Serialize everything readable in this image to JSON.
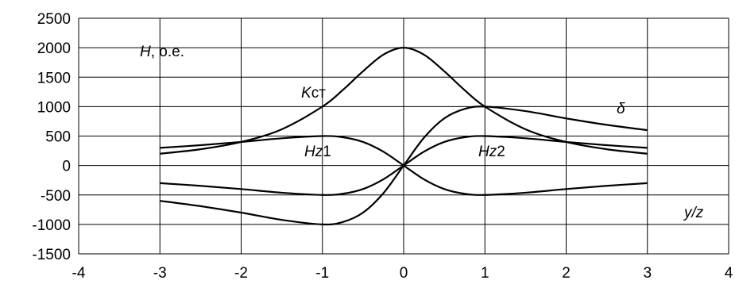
{
  "chart_data": {
    "type": "line",
    "title": "",
    "xlim": [
      -4,
      4
    ],
    "ylim": [
      -1500,
      2500
    ],
    "x_ticks": [
      -4,
      -3,
      -2,
      -1,
      0,
      1,
      2,
      3,
      4
    ],
    "y_ticks": [
      -1500,
      -1000,
      -500,
      0,
      500,
      1000,
      1500,
      2000,
      2500
    ],
    "x_tick_labels": [
      "-4",
      "-3",
      "-2",
      "-1",
      "0",
      "1",
      "2",
      "3",
      "4"
    ],
    "y_tick_labels": [
      "-1500",
      "-1000",
      "-500",
      "0",
      "500",
      "1000",
      "1500",
      "2000",
      "2500"
    ],
    "grid": true,
    "legend": "none",
    "annotations": {
      "y_axis": {
        "symbol": "H",
        "suffix": ", о.е."
      },
      "x_axis": {
        "text": "y/z"
      },
      "kst": {
        "main": "K",
        "sub": "ст"
      },
      "delta": {
        "text": "δ"
      },
      "hz1": {
        "main": "Hz",
        "sub": "1"
      },
      "hz2": {
        "main": "Hz",
        "sub": "2"
      }
    },
    "series": [
      {
        "x": [
          -3,
          -2.5,
          -2,
          -1.5,
          -1,
          -0.75,
          -0.5,
          -0.25,
          0,
          0.25,
          0.5,
          0.75,
          1,
          1.5,
          2,
          2.5,
          3
        ],
        "y": [
          200,
          276,
          400,
          615,
          1000,
          1280,
          1600,
          1882,
          2000,
          1882,
          1600,
          1280,
          1000,
          615,
          400,
          276,
          200
        ]
      },
      {
        "x": [
          -3,
          -2.5,
          -2,
          -1.5,
          -1,
          -0.75,
          -0.5,
          -0.25,
          0,
          0.25,
          0.5,
          0.75,
          1,
          1.5,
          2,
          2.5,
          3
        ],
        "y": [
          -600,
          -690,
          -800,
          -923,
          -1000,
          -960,
          -800,
          -471,
          0,
          471,
          800,
          960,
          1000,
          923,
          800,
          690,
          600
        ]
      },
      {
        "x": [
          -3,
          -2.5,
          -2,
          -1.5,
          -1,
          -0.75,
          -0.5,
          -0.25,
          0,
          0.25,
          0.5,
          0.75,
          1,
          1.5,
          2,
          2.5,
          3
        ],
        "y": [
          300,
          345,
          400,
          462,
          500,
          480,
          400,
          235,
          0,
          -235,
          -400,
          -480,
          -500,
          -462,
          -400,
          -345,
          -300
        ]
      },
      {
        "x": [
          -3,
          -2.5,
          -2,
          -1.5,
          -1,
          -0.75,
          -0.5,
          -0.25,
          0,
          0.25,
          0.5,
          0.75,
          1,
          1.5,
          2,
          2.5,
          3
        ],
        "y": [
          -300,
          -345,
          -400,
          -462,
          -500,
          -480,
          -400,
          -235,
          0,
          235,
          400,
          480,
          500,
          462,
          400,
          345,
          300
        ]
      }
    ]
  }
}
